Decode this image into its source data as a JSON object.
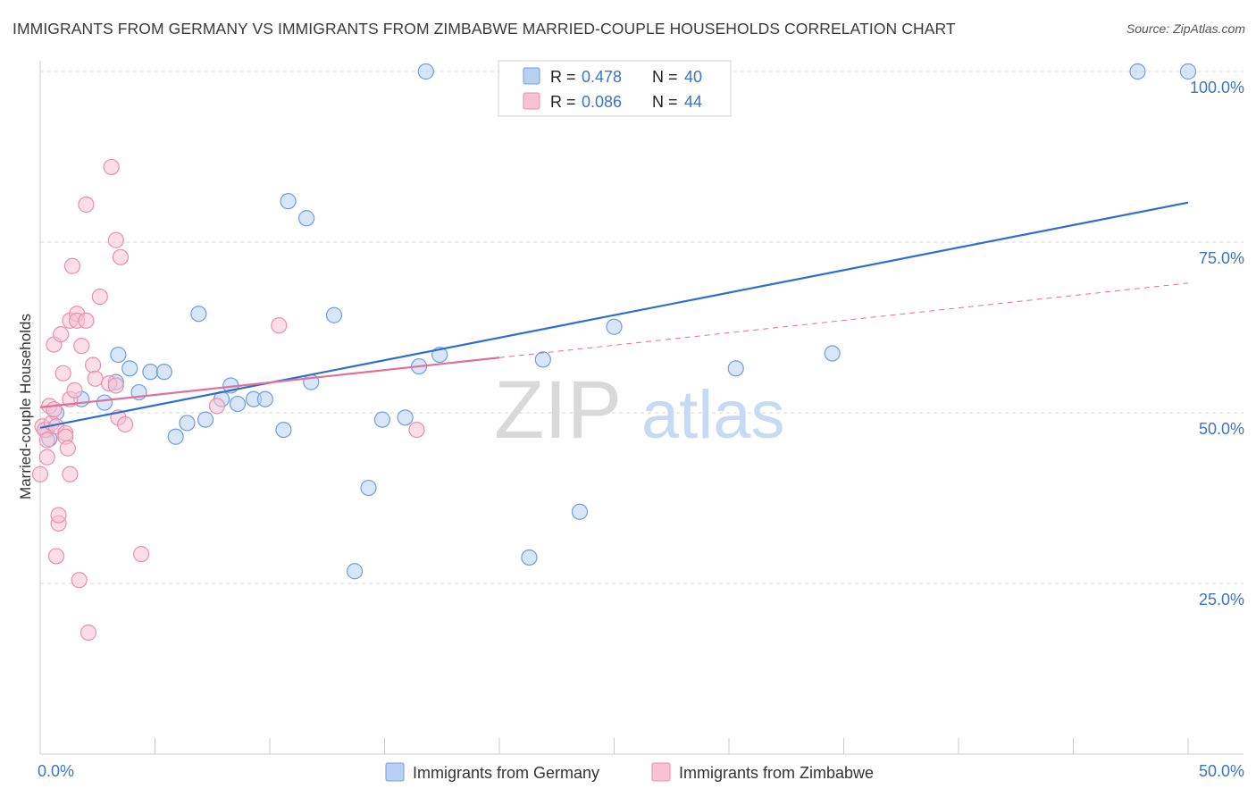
{
  "title": "IMMIGRANTS FROM GERMANY VS IMMIGRANTS FROM ZIMBABWE MARRIED-COUPLE HOUSEHOLDS CORRELATION CHART",
  "source": "Source: ZipAtlas.com",
  "watermark": {
    "zip": "ZIP",
    "atlas": "atlas"
  },
  "colors": {
    "germany_fill": "#b8d1f3",
    "germany_stroke": "#6f9fe0",
    "germany_line": "#2d6fd0",
    "zimbabwe_fill": "#f7c2d3",
    "zimbabwe_stroke": "#ec8fac",
    "zimbabwe_line": "#e2709a",
    "axis_label": "#3a74c8",
    "grid": "#d8d8d8"
  },
  "legend_stats": [
    {
      "r_label": "R =",
      "r_value": "0.478",
      "n_label": "N =",
      "n_value": "40"
    },
    {
      "r_label": "R =",
      "r_value": "0.086",
      "n_label": "N =",
      "n_value": "44"
    }
  ],
  "chart_data": {
    "type": "scatter",
    "title": "IMMIGRANTS FROM GERMANY VS IMMIGRANTS FROM ZIMBABWE MARRIED-COUPLE HOUSEHOLDS CORRELATION CHART",
    "xlabel": "",
    "ylabel": "Married-couple Households",
    "xlim": [
      0,
      50
    ],
    "ylim": [
      0,
      104
    ],
    "x_tick_labels": [
      {
        "value": 0,
        "label": "0.0%"
      },
      {
        "value": 50,
        "label": "50.0%"
      }
    ],
    "y_tick_labels": [
      {
        "value": 25,
        "label": "25.0%"
      },
      {
        "value": 50,
        "label": "50.0%"
      },
      {
        "value": 75,
        "label": "75.0%"
      },
      {
        "value": 100,
        "label": "100.0%"
      }
    ],
    "grid": true,
    "legend_position": "bottom",
    "series": [
      {
        "name": "Immigrants from Germany",
        "r": 0.478,
        "n": 40,
        "trend": {
          "x": [
            0,
            50
          ],
          "y": [
            47.8,
            80.8
          ],
          "dashed_from": null
        },
        "points": [
          [
            0.3,
            47.5
          ],
          [
            0.4,
            46.2
          ],
          [
            0.7,
            50.0
          ],
          [
            1.8,
            52.0
          ],
          [
            2.8,
            51.5
          ],
          [
            3.3,
            54.5
          ],
          [
            3.4,
            58.5
          ],
          [
            3.9,
            56.5
          ],
          [
            4.3,
            53.0
          ],
          [
            4.8,
            56.0
          ],
          [
            5.4,
            56.0
          ],
          [
            5.9,
            46.5
          ],
          [
            6.4,
            48.5
          ],
          [
            6.9,
            64.5
          ],
          [
            7.2,
            49.0
          ],
          [
            7.9,
            52.0
          ],
          [
            8.3,
            54.0
          ],
          [
            8.6,
            51.3
          ],
          [
            9.3,
            52.0
          ],
          [
            9.8,
            52.0
          ],
          [
            10.6,
            47.5
          ],
          [
            10.8,
            81.0
          ],
          [
            11.6,
            78.5
          ],
          [
            11.8,
            54.5
          ],
          [
            12.8,
            64.3
          ],
          [
            13.7,
            26.8
          ],
          [
            14.3,
            39.0
          ],
          [
            14.9,
            49.0
          ],
          [
            15.9,
            49.3
          ],
          [
            16.5,
            56.8
          ],
          [
            16.8,
            100.0
          ],
          [
            17.4,
            58.5
          ],
          [
            21.3,
            28.8
          ],
          [
            21.9,
            57.8
          ],
          [
            23.5,
            35.5
          ],
          [
            25.0,
            62.6
          ],
          [
            30.3,
            56.5
          ],
          [
            34.5,
            58.7
          ],
          [
            47.8,
            100.0
          ],
          [
            50.0,
            100.0
          ]
        ]
      },
      {
        "name": "Immigrants from Zimbabwe",
        "r": 0.086,
        "n": 44,
        "trend": {
          "x": [
            0,
            50
          ],
          "y": [
            50.8,
            69.0
          ],
          "dashed_from": 20.0
        },
        "points": [
          [
            0.0,
            41.0
          ],
          [
            0.1,
            48.0
          ],
          [
            0.2,
            47.5
          ],
          [
            0.3,
            46.0
          ],
          [
            0.3,
            43.5
          ],
          [
            0.4,
            51.0
          ],
          [
            0.5,
            48.5
          ],
          [
            0.6,
            60.0
          ],
          [
            0.6,
            50.5
          ],
          [
            0.7,
            29.0
          ],
          [
            0.7,
            48.0
          ],
          [
            0.8,
            33.8
          ],
          [
            0.8,
            35.0
          ],
          [
            0.9,
            61.5
          ],
          [
            1.0,
            55.8
          ],
          [
            1.1,
            47.0
          ],
          [
            1.1,
            46.5
          ],
          [
            1.2,
            44.8
          ],
          [
            1.3,
            52.0
          ],
          [
            1.3,
            63.5
          ],
          [
            1.3,
            41.0
          ],
          [
            1.4,
            71.5
          ],
          [
            1.5,
            53.3
          ],
          [
            1.6,
            64.5
          ],
          [
            1.6,
            63.5
          ],
          [
            1.7,
            25.5
          ],
          [
            1.8,
            59.8
          ],
          [
            2.0,
            63.5
          ],
          [
            2.0,
            80.5
          ],
          [
            2.1,
            17.8
          ],
          [
            2.3,
            57.0
          ],
          [
            2.4,
            55.0
          ],
          [
            2.6,
            67.0
          ],
          [
            3.0,
            54.3
          ],
          [
            3.1,
            86.0
          ],
          [
            3.3,
            54.0
          ],
          [
            3.3,
            75.3
          ],
          [
            3.4,
            49.3
          ],
          [
            3.5,
            72.8
          ],
          [
            3.7,
            48.3
          ],
          [
            4.4,
            29.3
          ],
          [
            7.7,
            51.0
          ],
          [
            10.4,
            62.8
          ],
          [
            16.4,
            47.5
          ]
        ]
      }
    ]
  }
}
